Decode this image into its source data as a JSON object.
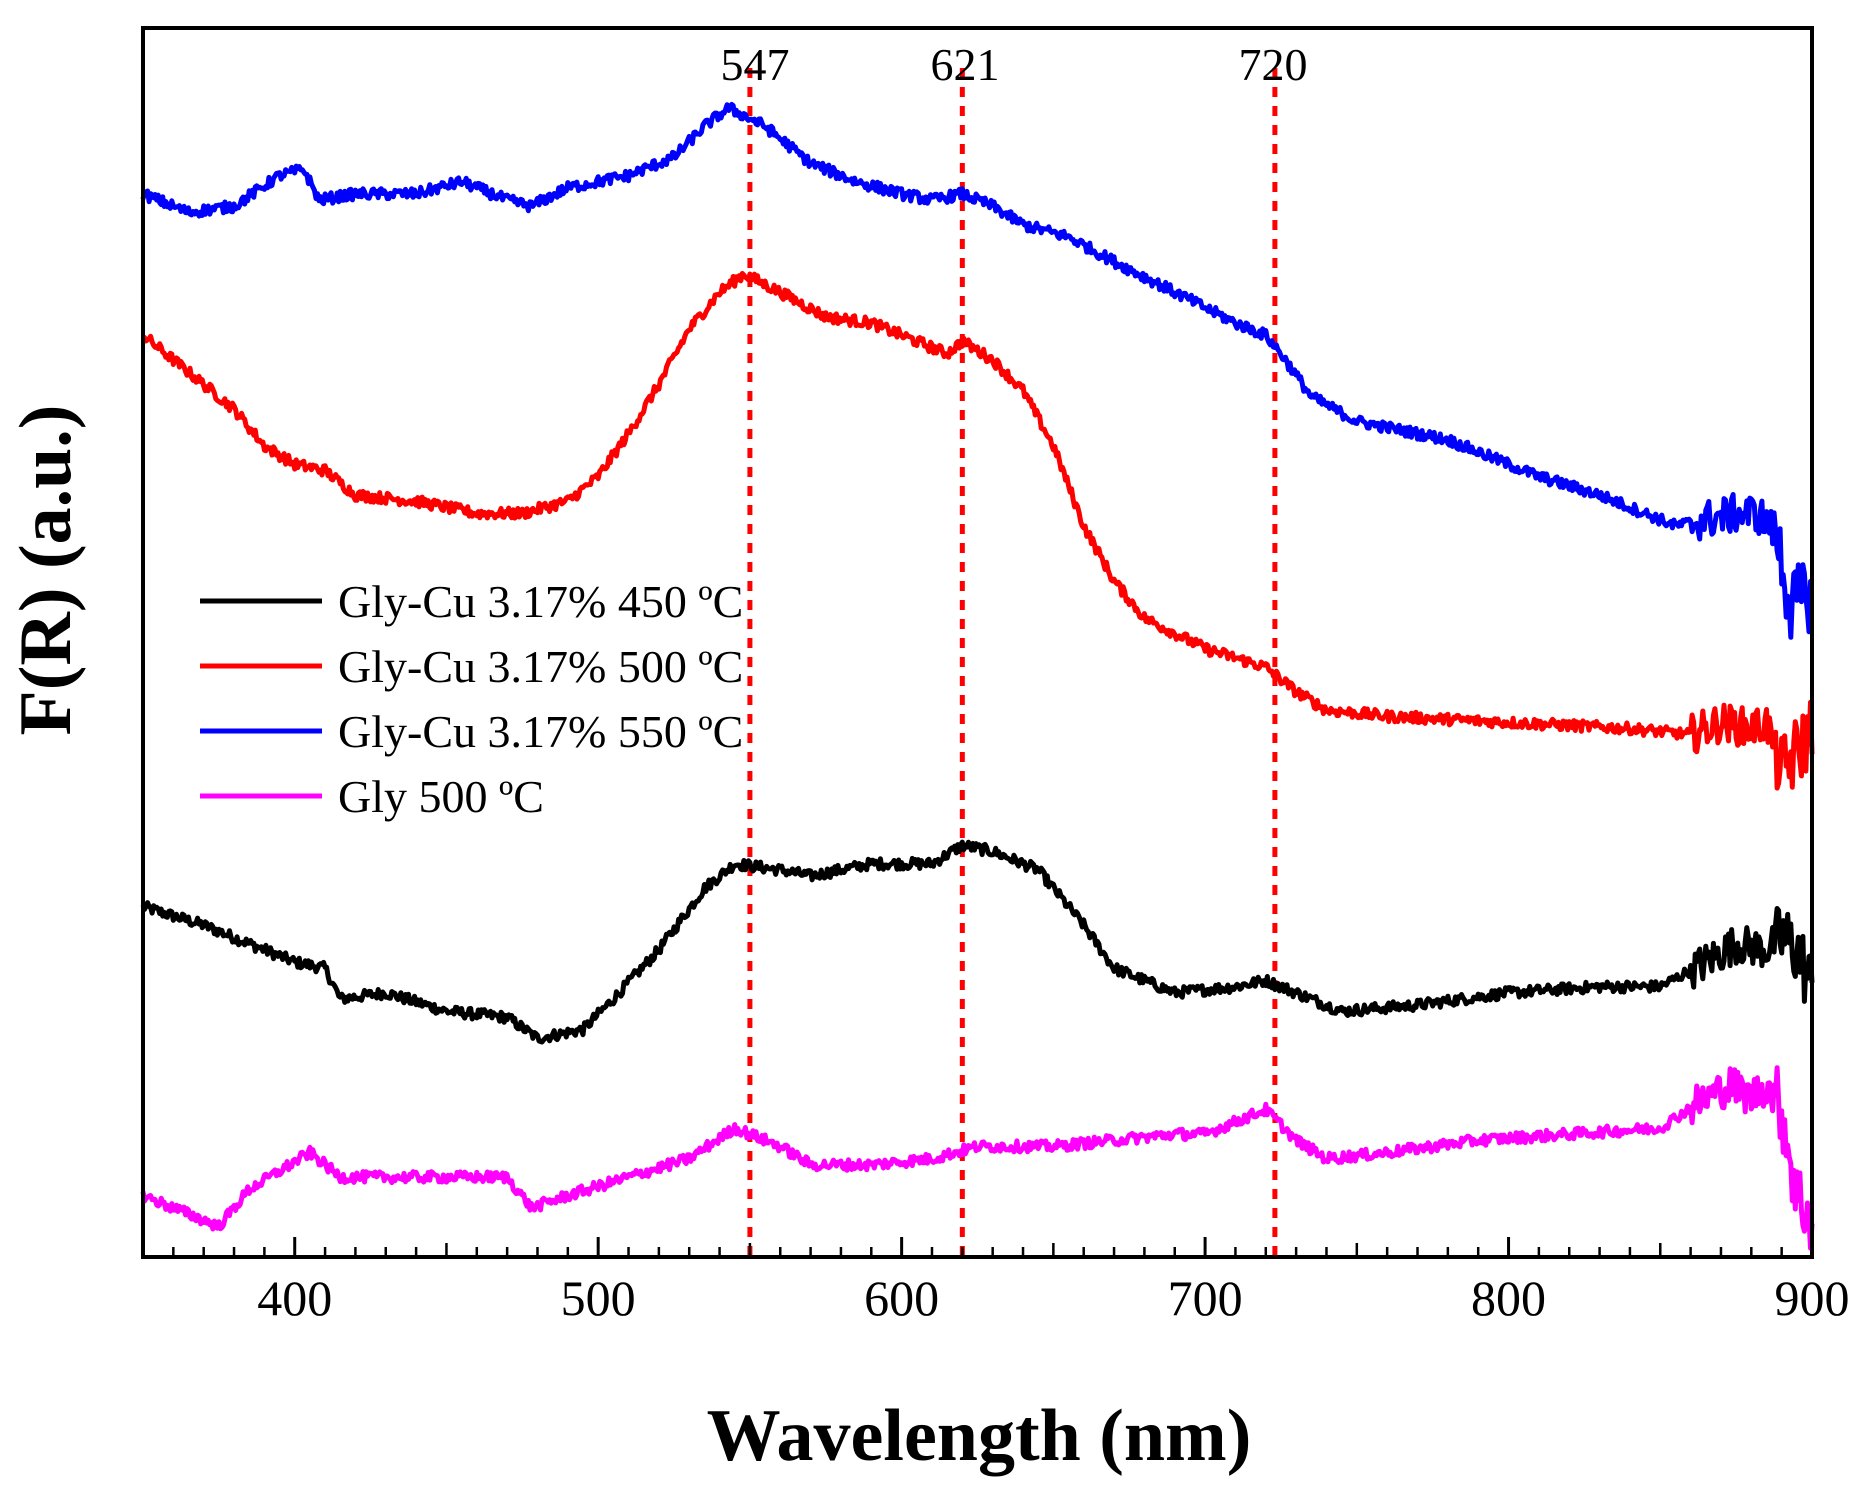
{
  "chart_data": {
    "type": "line",
    "title": "",
    "xlabel": "Wavelength (nm)",
    "ylabel": "F(R) (a.u.)",
    "xlim": [
      350,
      900
    ],
    "ylim": [
      0,
      100
    ],
    "x_ticks": [
      400,
      500,
      600,
      700,
      800,
      900
    ],
    "x_tick_labels": [
      "400",
      "500",
      "600",
      "700",
      "800",
      "900"
    ],
    "y_ticks_shown": false,
    "grid": false,
    "legend_position": "middle-left",
    "reference_lines": [
      {
        "x": 550,
        "label": "547",
        "color": "#ff0000",
        "style": "dotted"
      },
      {
        "x": 620,
        "label": "621",
        "color": "#ff0000",
        "style": "dotted"
      },
      {
        "x": 723,
        "label": "720",
        "color": "#ff0000",
        "style": "dotted"
      }
    ],
    "series": [
      {
        "name": "Gly-Cu 3.17% 450 ºC",
        "color": "#000000",
        "x": [
          350,
          370,
          385,
          400,
          410,
          415,
          430,
          450,
          470,
          480,
          495,
          505,
          520,
          535,
          545,
          560,
          570,
          590,
          610,
          620,
          630,
          645,
          660,
          670,
          690,
          710,
          720,
          735,
          745,
          770,
          800,
          830,
          850,
          865,
          875,
          885,
          890,
          895,
          900
        ],
        "y": [
          28.5,
          27,
          25.5,
          24,
          23.5,
          21,
          21.5,
          20,
          19.5,
          17.8,
          18.5,
          21,
          25,
          30,
          32,
          31.5,
          31,
          32,
          32,
          33.5,
          33,
          31.5,
          27,
          23.5,
          21.5,
          22,
          22.5,
          21,
          20,
          20.5,
          21.5,
          22,
          22,
          24,
          25.5,
          25,
          26,
          25,
          22
        ]
      },
      {
        "name": "Gly-Cu 3.17% 500 ºC",
        "color": "#ff0000",
        "x": [
          350,
          365,
          380,
          390,
          400,
          410,
          420,
          440,
          460,
          475,
          490,
          500,
          510,
          520,
          530,
          540,
          548,
          560,
          575,
          590,
          605,
          615,
          620,
          630,
          640,
          650,
          660,
          670,
          680,
          700,
          720,
          730,
          740,
          760,
          800,
          840,
          860,
          870,
          880,
          885,
          890,
          895,
          900
        ],
        "y": [
          75,
          72,
          69,
          66,
          64.5,
          64,
          62,
          61.5,
          60.5,
          60.5,
          61.5,
          63.5,
          67,
          71,
          75.5,
          78.5,
          80,
          78.5,
          76.5,
          76,
          74.5,
          73.5,
          74.5,
          73,
          70.5,
          66,
          59.5,
          55,
          52,
          49.5,
          48,
          46,
          44.5,
          44,
          43.5,
          43,
          42.5,
          43.5,
          43,
          43.5,
          39.5,
          41,
          43
        ]
      },
      {
        "name": "Gly-Cu 3.17% 550 ºC",
        "color": "#0000ff",
        "x": [
          350,
          365,
          380,
          395,
          403,
          408,
          420,
          440,
          455,
          470,
          478,
          490,
          510,
          525,
          535,
          543,
          555,
          570,
          585,
          600,
          610,
          620,
          630,
          640,
          655,
          670,
          690,
          710,
          720,
          725,
          735,
          750,
          780,
          810,
          830,
          850,
          855,
          865,
          875,
          882,
          888,
          893,
          900
        ],
        "y": [
          86.5,
          85,
          85.5,
          88,
          88.5,
          86,
          86.5,
          86.5,
          87.5,
          86,
          85.5,
          87,
          88,
          89.5,
          92,
          93.5,
          92,
          89,
          87.5,
          86.5,
          86,
          86.5,
          85.5,
          84,
          83,
          81,
          78.5,
          76,
          75,
          73.5,
          70,
          68,
          66.5,
          63.5,
          62,
          60,
          59.5,
          60,
          60.5,
          60.5,
          59,
          53,
          54
        ]
      },
      {
        "name": "Gly 500 ºC",
        "color": "#ff00ff",
        "x": [
          350,
          365,
          375,
          385,
          395,
          405,
          410,
          415,
          430,
          450,
          470,
          478,
          490,
          510,
          530,
          545,
          560,
          570,
          590,
          610,
          625,
          650,
          670,
          690,
          700,
          715,
          720,
          730,
          740,
          760,
          790,
          820,
          850,
          862,
          873,
          880,
          885,
          890,
          895,
          900
        ],
        "y": [
          5,
          3.5,
          2.5,
          5.5,
          7,
          8.5,
          7.5,
          6.5,
          6.5,
          6.5,
          6.5,
          4,
          5,
          6.5,
          8,
          10.5,
          9,
          7.5,
          7.5,
          8,
          9,
          9,
          9.5,
          10,
          10,
          11.5,
          12,
          9.5,
          8,
          8.5,
          9.5,
          10,
          10.5,
          12.5,
          14,
          13,
          14,
          12,
          5,
          3
        ]
      }
    ]
  }
}
